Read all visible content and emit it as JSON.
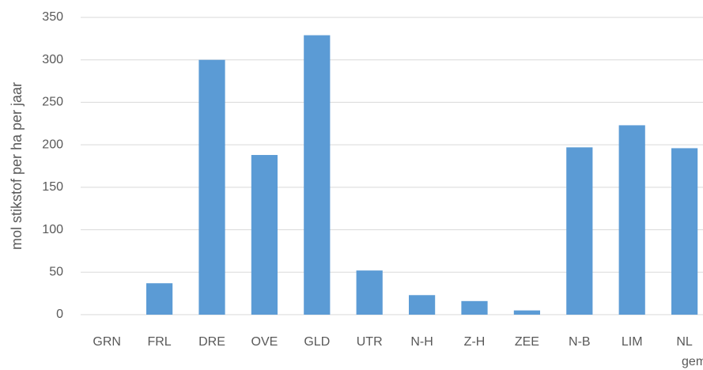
{
  "chart_data": {
    "type": "bar",
    "y_label": "mol stikstof per ha per jaar",
    "categories": [
      "GRN",
      "FRL",
      "DRE",
      "OVE",
      "GLD",
      "UTR",
      "N-H",
      "Z-H",
      "ZEE",
      "N-B",
      "LIM",
      "NL gem"
    ],
    "values": [
      0,
      37,
      300,
      188,
      329,
      52,
      23,
      16,
      5,
      197,
      223,
      196
    ],
    "color": "#5b9bd5",
    "ylim": [
      0,
      350
    ],
    "yticks": [
      0,
      50,
      100,
      150,
      200,
      250,
      300,
      350
    ],
    "grid": true
  }
}
